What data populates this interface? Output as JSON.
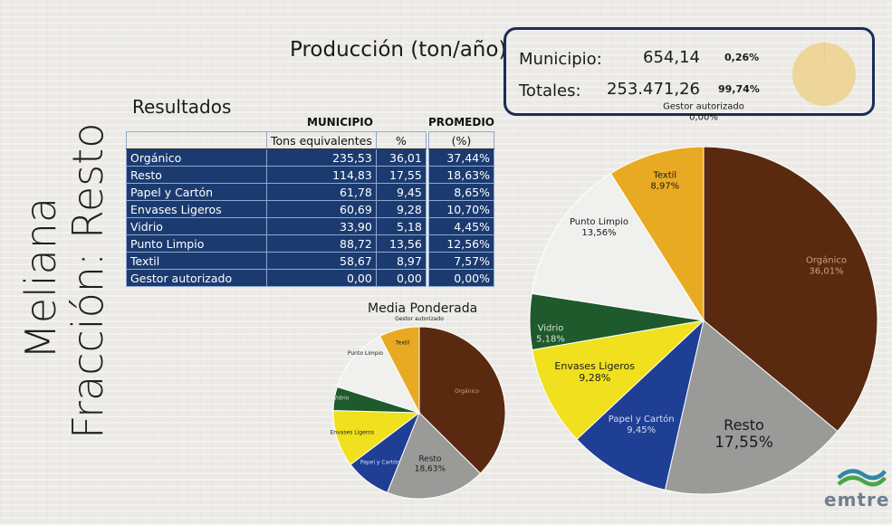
{
  "side_title": {
    "line1": "Meliana",
    "line2": "Fracción: Resto"
  },
  "production": {
    "title": "Producción (ton/año)",
    "municipio_label": "Municipio:",
    "municipio_value": "654,14",
    "municipio_pct": "0,26%",
    "totales_label": "Totales:",
    "totales_value": "253.471,26",
    "totales_pct": "99,74%",
    "mini_pie_fraction": 0.0026,
    "mini_pie_color": "#eed69b"
  },
  "results": {
    "title": "Resultados",
    "municipio_header": "MUNICIPIO",
    "promedio_header": "PROMEDIO",
    "col_tons": "Tons equivalentes",
    "col_pct": "%",
    "col_prom": "(%)",
    "rows": [
      {
        "name": "Orgánico",
        "tons": "235,53",
        "pct": "36,01",
        "prom": "37,44%"
      },
      {
        "name": "Resto",
        "tons": "114,83",
        "pct": "17,55",
        "prom": "18,63%"
      },
      {
        "name": "Papel y Cartón",
        "tons": "61,78",
        "pct": "9,45",
        "prom": "8,65%"
      },
      {
        "name": "Envases Ligeros",
        "tons": "60,69",
        "pct": "9,28",
        "prom": "10,70%"
      },
      {
        "name": "Vidrio",
        "tons": "33,90",
        "pct": "5,18",
        "prom": "4,45%"
      },
      {
        "name": "Punto Limpio",
        "tons": "88,72",
        "pct": "13,56",
        "prom": "12,56%"
      },
      {
        "name": "Textil",
        "tons": "58,67",
        "pct": "8,97",
        "prom": "7,57%"
      },
      {
        "name": "Gestor autorizado",
        "tons": "0,00",
        "pct": "0,00",
        "prom": "0,00%"
      }
    ]
  },
  "chart_data": [
    {
      "type": "pie",
      "title": "",
      "categories": [
        "Orgánico",
        "Resto",
        "Papel y Cartón",
        "Envases Ligeros",
        "Vidrio",
        "Punto Limpio",
        "Textil",
        "Gestor autorizado"
      ],
      "values": [
        36.01,
        17.55,
        9.45,
        9.28,
        5.18,
        13.56,
        8.97,
        0.0
      ],
      "labels": [
        "Orgánico\n36,01%",
        "Resto\n17,55%",
        "Papel y Cartón\n9,45%",
        "Envases Ligeros\n9,28%",
        "Vidrio\n5,18%",
        "Punto Limpio\n13,56%",
        "Textil\n8,97%",
        "Gestor autorizado\n0,00%"
      ],
      "colors": [
        "#5a2a10",
        "#9a9a98",
        "#1f3f95",
        "#f0e01e",
        "#1e5a2c",
        "#f0f0ee",
        "#e8aa22",
        "#cccccc"
      ]
    },
    {
      "type": "pie",
      "title": "Media Ponderada",
      "categories": [
        "Orgánico",
        "Resto",
        "Papel y Cartón",
        "Envases Ligeros",
        "Vidrio",
        "Punto Limpio",
        "Textil",
        "Gestor autorizado"
      ],
      "values": [
        37.44,
        18.63,
        8.65,
        10.7,
        4.45,
        12.56,
        7.57,
        0.0
      ],
      "labels": [
        "Orgánico",
        "Resto\n18,63%",
        "Papel y Cartón",
        "Envases Ligeros",
        "Vidrio",
        "Punto Limpio",
        "Textil",
        "Gestor autorizado"
      ],
      "colors": [
        "#5a2a10",
        "#9a9a98",
        "#1f3f95",
        "#f0e01e",
        "#1e5a2c",
        "#f0f0ee",
        "#e8aa22",
        "#cccccc"
      ]
    }
  ],
  "logo": {
    "text": "emtre"
  }
}
